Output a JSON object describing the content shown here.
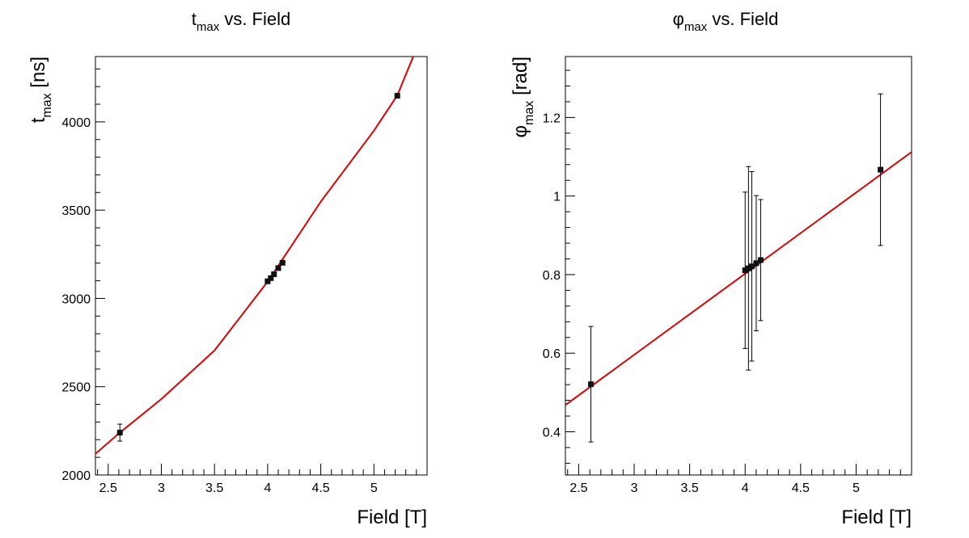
{
  "chart_data": [
    {
      "type": "scatter",
      "title": {
        "main": "t",
        "sub": "max",
        "rest": " vs. Field"
      },
      "xlabel": "Field [T]",
      "ylabel": {
        "main": "t",
        "sub": "max",
        "rest": " [ns]"
      },
      "xlim": [
        2.38,
        5.5
      ],
      "ylim": [
        2000,
        4370
      ],
      "x_ticks": [
        2.5,
        3,
        3.5,
        4,
        4.5,
        5
      ],
      "x_tick_labels": [
        "2.5",
        "3",
        "3.5",
        "4",
        "4.5",
        "5"
      ],
      "y_ticks": [
        2000,
        2500,
        3000,
        3500,
        4000
      ],
      "y_tick_labels": [
        "2000",
        "2500",
        "3000",
        "3500",
        "4000"
      ],
      "grid": false,
      "series": [
        {
          "points": [
            {
              "x": 2.61,
              "y": 2240,
              "err": 48
            },
            {
              "x": 4.0,
              "y": 3097,
              "err": 0
            },
            {
              "x": 4.03,
              "y": 3115,
              "err": 0
            },
            {
              "x": 4.06,
              "y": 3137,
              "err": 0
            },
            {
              "x": 4.1,
              "y": 3172,
              "err": 0
            },
            {
              "x": 4.14,
              "y": 3202,
              "err": 0
            },
            {
              "x": 5.22,
              "y": 4148,
              "err": 0
            }
          ]
        }
      ],
      "fit": {
        "color": "#e00000",
        "points": [
          [
            2.38,
            2120
          ],
          [
            2.61,
            2240
          ],
          [
            3.0,
            2430
          ],
          [
            3.5,
            2705
          ],
          [
            4.0,
            3095
          ],
          [
            4.5,
            3548
          ],
          [
            5.0,
            3950
          ],
          [
            5.22,
            4150
          ],
          [
            5.37,
            4370
          ]
        ]
      }
    },
    {
      "type": "scatter",
      "title": {
        "main": "φ",
        "sub": "max",
        "rest": " vs. Field"
      },
      "xlabel": "Field [T]",
      "ylabel": {
        "main": "φ",
        "sub": "max",
        "rest": " [rad]"
      },
      "xlim": [
        2.38,
        5.5
      ],
      "ylim": [
        0.29,
        1.355
      ],
      "x_ticks": [
        2.5,
        3,
        3.5,
        4,
        4.5,
        5
      ],
      "x_tick_labels": [
        "2.5",
        "3",
        "3.5",
        "4",
        "4.5",
        "5"
      ],
      "y_ticks": [
        0.4,
        0.6,
        0.8,
        1.0,
        1.2
      ],
      "y_tick_labels": [
        "0.4",
        "0.6",
        "0.8",
        "1",
        "1.2"
      ],
      "grid": false,
      "series": [
        {
          "points": [
            {
              "x": 2.61,
              "y": 0.521,
              "err": 0.147
            },
            {
              "x": 4.0,
              "y": 0.811,
              "err": 0.199
            },
            {
              "x": 4.03,
              "y": 0.816,
              "err": 0.259
            },
            {
              "x": 4.06,
              "y": 0.821,
              "err": 0.241
            },
            {
              "x": 4.1,
              "y": 0.829,
              "err": 0.172
            },
            {
              "x": 4.14,
              "y": 0.837,
              "err": 0.154
            },
            {
              "x": 5.22,
              "y": 1.067,
              "err": 0.193
            }
          ]
        }
      ],
      "fit": {
        "color": "#e00000",
        "points": [
          [
            2.38,
            0.468
          ],
          [
            5.5,
            1.112
          ]
        ]
      }
    }
  ]
}
